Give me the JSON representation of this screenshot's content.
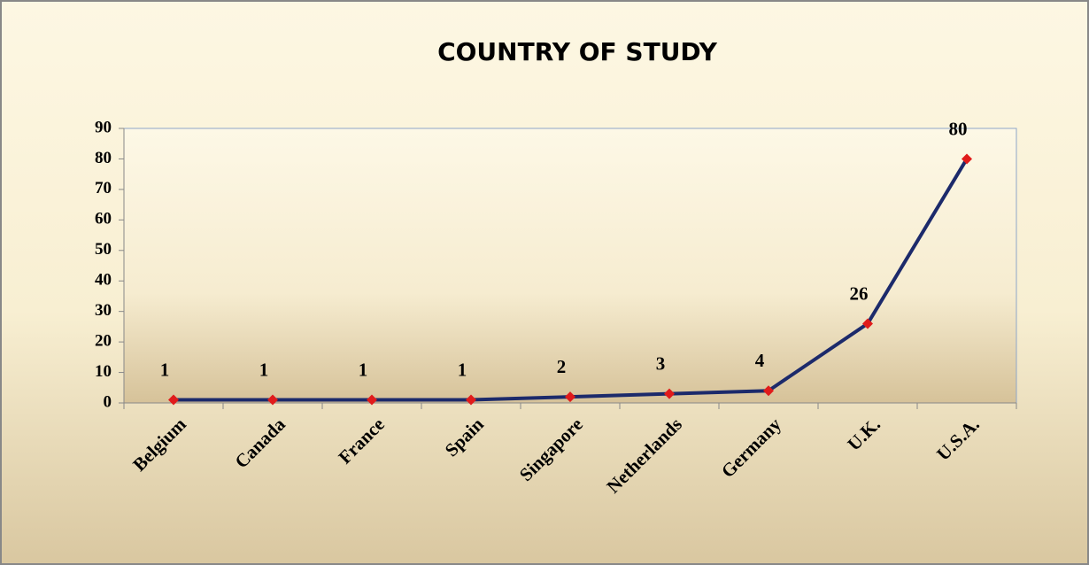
{
  "chart_data": {
    "type": "line",
    "title": "COUNTRY OF STUDY",
    "categories": [
      "Belgium",
      "Canada",
      "France",
      "Spain",
      "Singapore",
      "Netherlands",
      "Germany",
      "U.K.",
      "U.S.A."
    ],
    "series": [
      {
        "color": "#1c2a6b",
        "marker_color": "#e01b1b",
        "values": [
          1,
          1,
          1,
          1,
          2,
          3,
          4,
          26,
          80
        ]
      }
    ],
    "ylim": [
      0,
      90
    ],
    "yticks": [
      0,
      10,
      20,
      30,
      40,
      50,
      60,
      70,
      80,
      90
    ]
  }
}
